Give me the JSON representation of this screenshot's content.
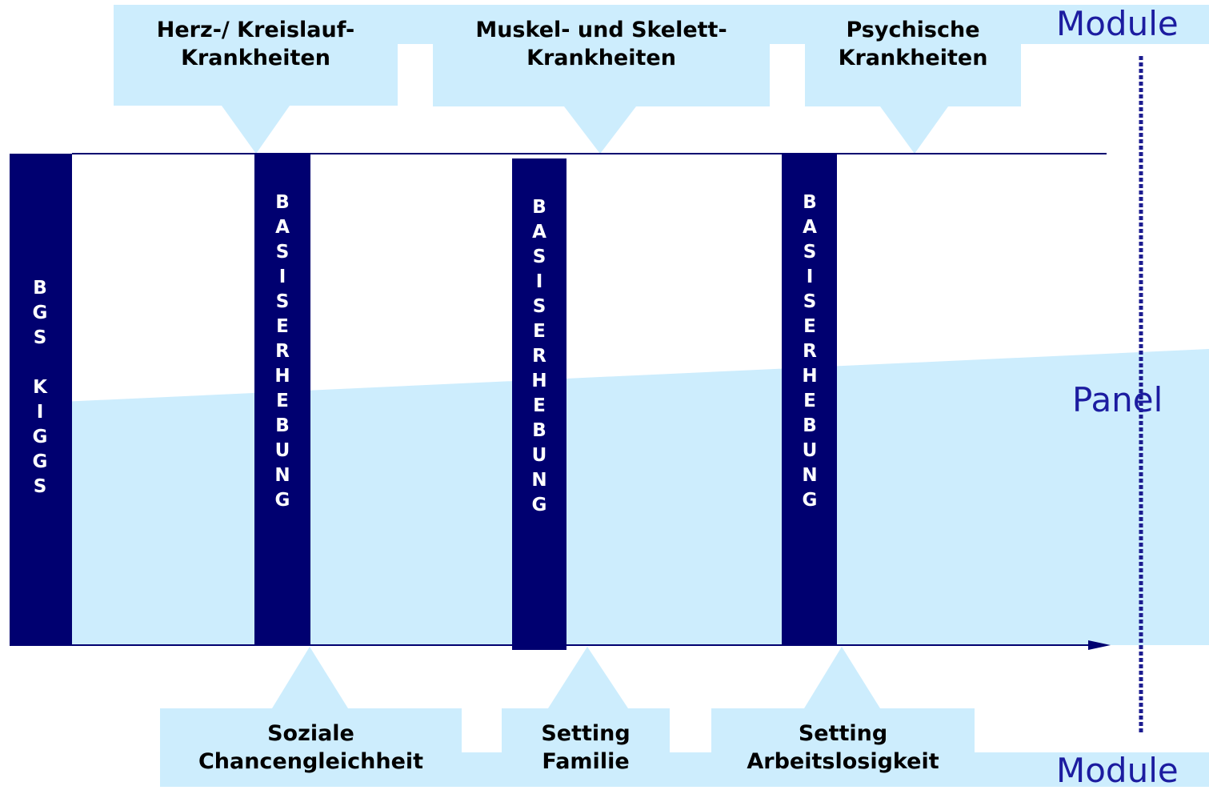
{
  "labels": {
    "module_top": "Module",
    "panel": "Panel",
    "module_bottom": "Module"
  },
  "top_modules": [
    {
      "line1": "Herz-/ Kreislauf-",
      "line2": "Krankheiten"
    },
    {
      "line1": "Muskel- und Skelett-",
      "line2": "Krankheiten"
    },
    {
      "line1": "Psychische",
      "line2": "Krankheiten"
    }
  ],
  "bottom_modules": [
    {
      "line1": "Soziale",
      "line2": "Chancengleichheit"
    },
    {
      "line1": "Setting",
      "line2": "Familie"
    },
    {
      "line1": "Setting",
      "line2": "Arbeitslosigkeit"
    }
  ],
  "bars": [
    {
      "label": "BGS KIGGS"
    },
    {
      "label": "BASISERHEBUNG"
    },
    {
      "label": "BASISERHEBUNG"
    },
    {
      "label": "BASISERHEBUNG"
    }
  ]
}
